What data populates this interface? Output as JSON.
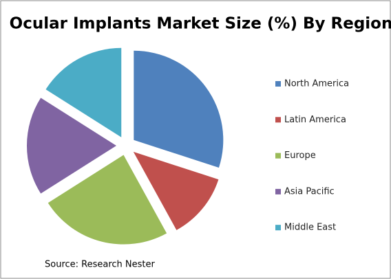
{
  "chart_data": {
    "type": "pie",
    "title": "Ocular Implants  Market Size (%) By Region",
    "categories": [
      "North America",
      "Latin America",
      "Europe",
      "Asia Pacific",
      "Middle East"
    ],
    "values": [
      30,
      12,
      24,
      18,
      16
    ],
    "colors": [
      "#4f81bd",
      "#c0504d",
      "#9bbb59",
      "#8064a2",
      "#4bacc6"
    ],
    "legend": "right",
    "source": "Source: Research Nester"
  }
}
